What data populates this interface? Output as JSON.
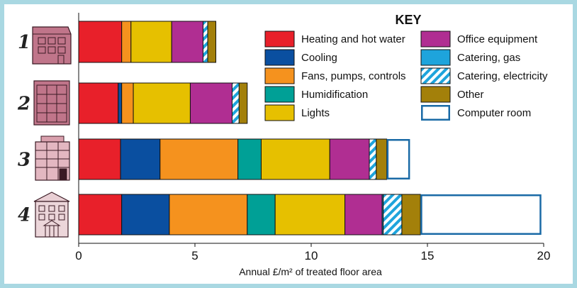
{
  "chart_data": {
    "type": "bar",
    "orientation": "horizontal",
    "stacked": true,
    "xlabel": "Annual £/m² of treated floor area",
    "xlim": [
      0,
      20
    ],
    "xticks": [
      "0",
      "5",
      "10",
      "15",
      "20"
    ],
    "legend_title": "KEY",
    "legend_position": "top-right",
    "categories": [
      "1",
      "2",
      "3",
      "4"
    ],
    "series": [
      {
        "name": "Heating and hot water",
        "color": "#e8202a",
        "pattern": "solid",
        "values": [
          1.85,
          1.7,
          1.8,
          1.85
        ]
      },
      {
        "name": "Cooling",
        "color": "#0a4fa0",
        "pattern": "solid",
        "values": [
          0,
          0.15,
          1.7,
          2.05
        ]
      },
      {
        "name": "Fans, pumps, controls",
        "color": "#f5921e",
        "pattern": "solid",
        "values": [
          0.4,
          0.5,
          3.35,
          3.35
        ]
      },
      {
        "name": "Humidification",
        "color": "#00a096",
        "pattern": "solid",
        "values": [
          0,
          0,
          1.0,
          1.2
        ]
      },
      {
        "name": "Lights",
        "color": "#e6c000",
        "pattern": "solid",
        "values": [
          1.75,
          2.45,
          2.95,
          3.0
        ]
      },
      {
        "name": "Office equipment",
        "color": "#b02e92",
        "pattern": "solid",
        "values": [
          1.35,
          1.8,
          1.7,
          1.6
        ]
      },
      {
        "name": "Catering, gas",
        "color": "#1ea4dc",
        "pattern": "solid",
        "values": [
          0,
          0,
          0,
          0.05
        ]
      },
      {
        "name": "Catering, electricity",
        "color": "#1ea4dc",
        "pattern": "hatched",
        "values": [
          0.2,
          0.3,
          0.3,
          0.8
        ]
      },
      {
        "name": "Other",
        "color": "#a3800a",
        "pattern": "solid",
        "values": [
          0.35,
          0.35,
          0.45,
          0.8
        ]
      },
      {
        "name": "Computer room",
        "color": "#ffffff",
        "stroke": "#1a6aa6",
        "pattern": "outline",
        "values": [
          0,
          0,
          1.0,
          5.2
        ]
      }
    ]
  }
}
